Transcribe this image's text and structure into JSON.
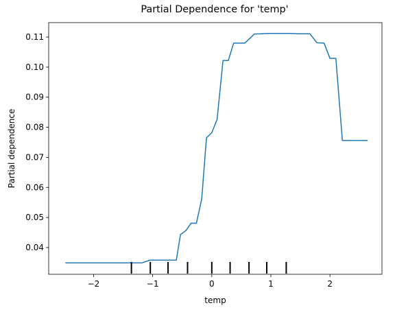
{
  "chart_data": {
    "type": "line",
    "title": "Partial Dependence for 'temp'",
    "xlabel": "temp",
    "ylabel": "Partial dependence",
    "xlim": [
      -2.76,
      2.88
    ],
    "ylim": [
      0.0311,
      0.1148
    ],
    "xticks": [
      -2,
      -1,
      0,
      1,
      2
    ],
    "xtick_labels": [
      "−2",
      "−1",
      "0",
      "1",
      "2"
    ],
    "yticks": [
      0.04,
      0.05,
      0.06,
      0.07,
      0.08,
      0.09,
      0.1,
      0.11
    ],
    "ytick_labels": [
      "0.04",
      "0.05",
      "0.06",
      "0.07",
      "0.08",
      "0.09",
      "0.10",
      "0.11"
    ],
    "grid": false,
    "line_color": "#1f77b4",
    "series": [
      {
        "x": [
          -2.47,
          -1.18,
          -1.05,
          -0.6,
          -0.53,
          -0.44,
          -0.35,
          -0.26,
          -0.17,
          -0.09,
          0.0,
          0.09,
          0.19,
          0.28,
          0.37,
          0.46,
          0.56,
          0.72,
          0.84,
          0.94,
          1.07,
          1.33,
          1.47,
          1.66,
          1.78,
          1.9,
          2.0,
          2.1,
          2.21,
          2.63
        ],
        "y": [
          0.0349,
          0.0349,
          0.0358,
          0.0358,
          0.0443,
          0.0456,
          0.0481,
          0.0481,
          0.0562,
          0.0765,
          0.0782,
          0.0826,
          0.1022,
          0.1022,
          0.108,
          0.108,
          0.108,
          0.111,
          0.1111,
          0.1112,
          0.1112,
          0.1112,
          0.1111,
          0.1111,
          0.1081,
          0.108,
          0.1029,
          0.1029,
          0.0756,
          0.0756
        ]
      }
    ],
    "rug_deciles": [
      -1.36,
      -1.04,
      -0.74,
      -0.41,
      0.0,
      0.31,
      0.63,
      0.93,
      1.26
    ]
  }
}
